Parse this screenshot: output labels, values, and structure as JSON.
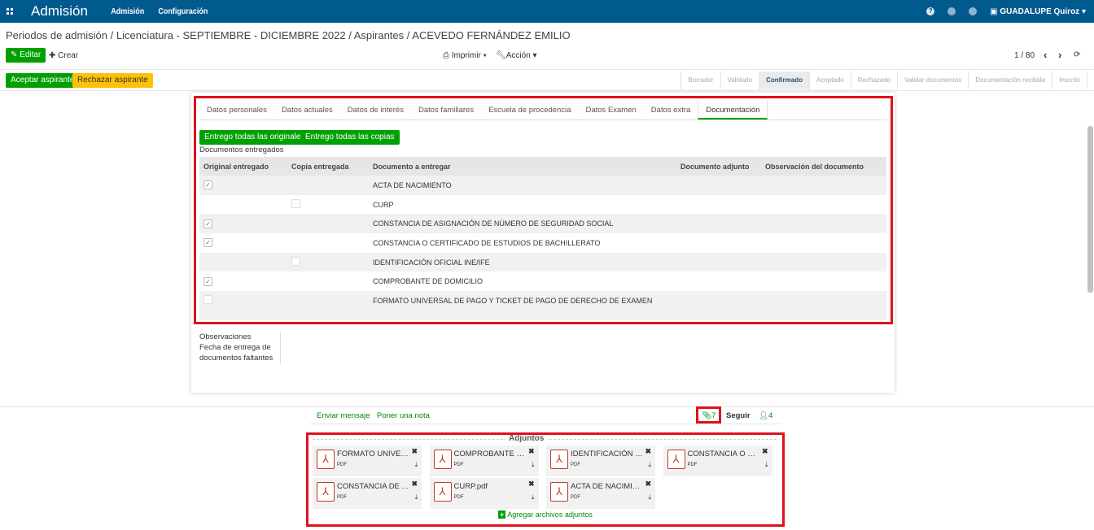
{
  "navbar": {
    "app": "Admisión",
    "menus": [
      "Admisión",
      "Configuración"
    ],
    "user": "GUADALUPE Quiroz"
  },
  "breadcrumb": "Periodos de admisión / Licenciatura - SEPTIEMBRE - DICIEMBRE 2022 / Aspirantes / ACEVEDO FERNÁNDEZ EMILIO",
  "toolbar": {
    "edit": "Editar",
    "create": "Crear",
    "print": "Imprimir",
    "action": "Acción",
    "pager": "1 / 80"
  },
  "actions": {
    "accept": "Aceptar aspirante",
    "reject": "Rechazar aspirante"
  },
  "statusbar": {
    "stages": [
      "Borrador",
      "Validado",
      "Confirmado",
      "Aceptado",
      "Rechazado",
      "Validar documentos",
      "Documentación recibida",
      "Inscrito"
    ],
    "active": "Confirmado"
  },
  "tabs": [
    "Datos personales",
    "Datos actuales",
    "Datos de interés",
    "Datos familiares",
    "Escuela de procedencia",
    "Datos Examen",
    "Datos extra",
    "Documentación"
  ],
  "active_tab": "Documentación",
  "doc": {
    "btn_originals": "Entrego todas las originales",
    "btn_copies": "Entrego todas las copias",
    "section_label": "Documentos entregados",
    "columns": [
      "Original entregado",
      "Copia entregada",
      "Documento a entregar",
      "Documento adjunto",
      "Observación del documento"
    ],
    "rows": [
      {
        "original": true,
        "copy": null,
        "document": "ACTA DE NACIMIENTO"
      },
      {
        "original": null,
        "copy": false,
        "document": "CURP"
      },
      {
        "original": true,
        "copy": null,
        "document": "CONSTANCIA DE ASIGNACIÓN DE NÚMERO DE SEGURIDAD SOCIAL"
      },
      {
        "original": true,
        "copy": null,
        "document": "CONSTANCIA O CERTIFICADO DE ESTUDIOS DE BACHILLERATO"
      },
      {
        "original": null,
        "copy": false,
        "document": "IDENTIFICACIÓN OFICIAL INE/IFE"
      },
      {
        "original": true,
        "copy": null,
        "document": "COMPROBANTE DE DOMICILIO"
      },
      {
        "original": false,
        "copy": null,
        "document": "FORMATO UNIVERSAL DE PAGO Y TICKET DE PAGO DE DERECHO DE EXAMEN"
      }
    ]
  },
  "fields": {
    "observations": "Observaciones",
    "missing_date": "Fecha de entrega de documentos faltantes"
  },
  "chatter": {
    "send": "Enviar mensaje",
    "note": "Poner una nota",
    "attachments_count": "7",
    "follow": "Seguir",
    "followers": "4"
  },
  "attachments": {
    "title": "Adjuntos",
    "add": "Agregar archivos adjuntos",
    "items": [
      {
        "name": "FORMATO UNIVERSAL...",
        "type": "PDF"
      },
      {
        "name": "COMPROBANTE DE D...",
        "type": "PDF"
      },
      {
        "name": "IDENTIFICACIÓN OFICI...",
        "type": "PDF"
      },
      {
        "name": "CONSTANCIA O CERTI...",
        "type": "PDF"
      },
      {
        "name": "CONSTANCIA DE ASIG...",
        "type": "PDF"
      },
      {
        "name": "CURP.pdf",
        "type": "PDF"
      },
      {
        "name": "ACTA DE NACIMIENTO...",
        "type": "PDF"
      }
    ]
  },
  "colors": {
    "navbar": "#005a8e",
    "primary": "#00a000",
    "warning": "#ffc107",
    "highlight": "#e0111b"
  }
}
